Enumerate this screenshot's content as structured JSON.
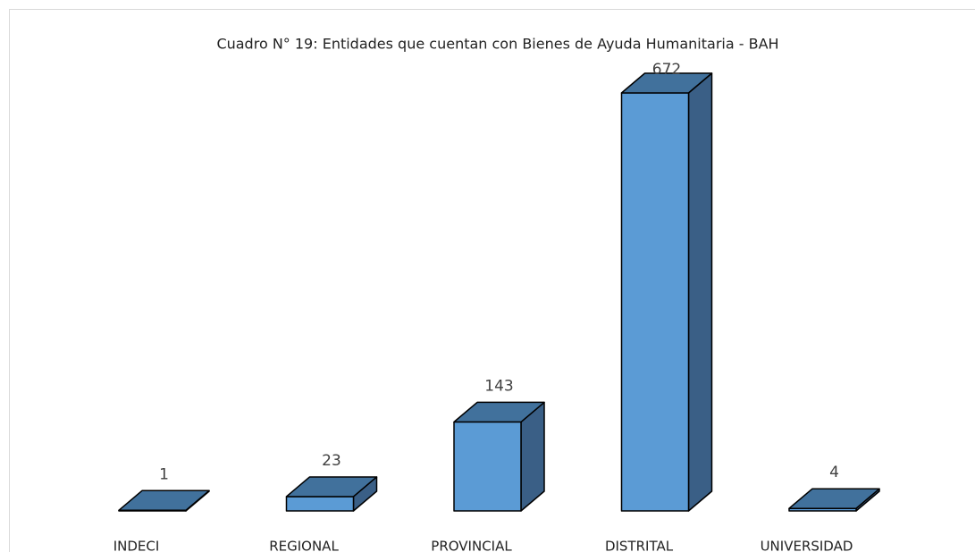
{
  "chart_data": {
    "type": "bar3d",
    "title": "Cuadro N° 19: Entidades que cuentan con Bienes de Ayuda Humanitaria - BAH",
    "categories": [
      "INDECI",
      "REGIONAL",
      "PROVINCIAL",
      "DISTRITAL",
      "UNIVERSIDAD"
    ],
    "values": [
      1,
      23,
      143,
      672,
      4
    ],
    "color": "#5b9bd5",
    "top_color": "#41719c",
    "side_color": "#3a5f86"
  }
}
